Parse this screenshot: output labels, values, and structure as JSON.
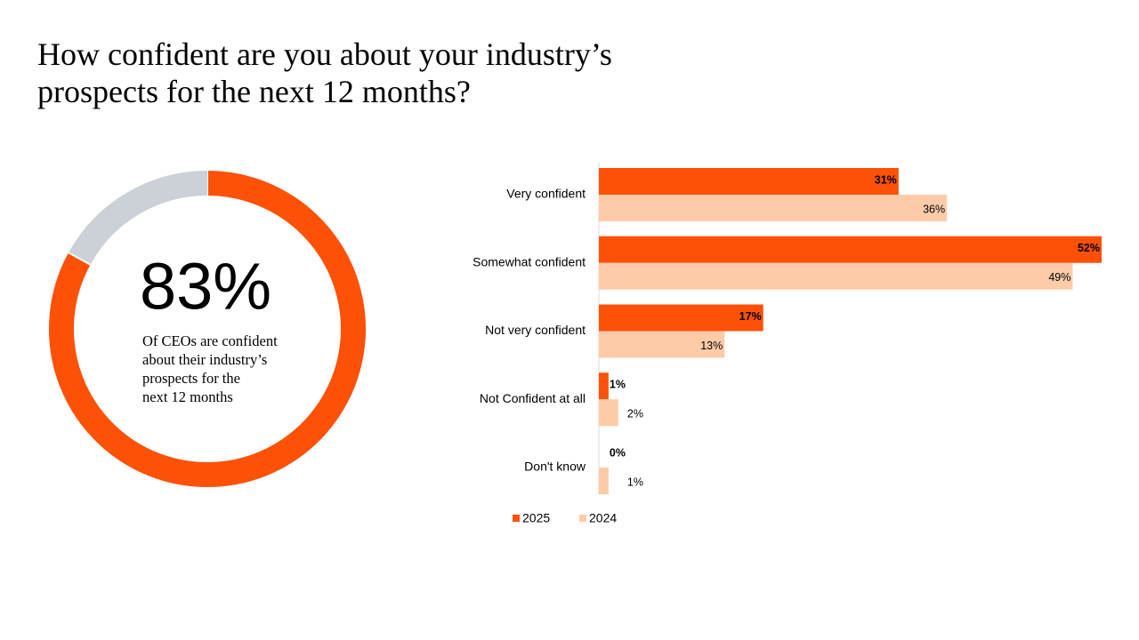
{
  "title": "How confident are you about your industry’s prospects for the next 12 months?",
  "chart_data": [
    {
      "type": "donut",
      "values": [
        83,
        17
      ],
      "value_labels": [
        "83%",
        null
      ],
      "colors": [
        "#fd5108",
        "#cbd1d6"
      ],
      "caption": [
        "Of CEOs are confident",
        "about their industry’s",
        "prospects for the",
        "next 12 months"
      ]
    },
    {
      "type": "hbar",
      "categories": [
        "Very confident",
        "Somewhat confident",
        "Not very confident",
        "Not Confident at all",
        "Don't know"
      ],
      "series": [
        {
          "name": "2025",
          "color": "#fd5108",
          "values": [
            31,
            52,
            17,
            1,
            0
          ],
          "value_labels": [
            "31%",
            "52%",
            "17%",
            "1%",
            "0%"
          ]
        },
        {
          "name": "2024",
          "color": "#fecba8",
          "values": [
            36,
            49,
            13,
            2,
            1
          ],
          "value_labels": [
            "36%",
            "49%",
            "13%",
            "2%",
            "1%"
          ]
        }
      ],
      "xlim": [
        0,
        52
      ],
      "legend": "bottom"
    }
  ]
}
